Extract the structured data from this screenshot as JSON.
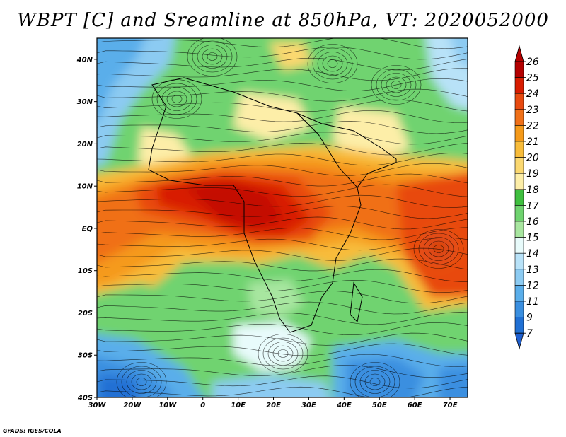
{
  "title": "WBPT [C] and Sreamline at 850hPa, VT: 2020052000",
  "credit": "GrADS: IGES/COLA",
  "map": {
    "lon_range": [
      -30,
      75
    ],
    "lat_range": [
      -40,
      45
    ],
    "lon_ticks": [
      {
        "value": -30,
        "label": "30W"
      },
      {
        "value": -20,
        "label": "20W"
      },
      {
        "value": -10,
        "label": "10W"
      },
      {
        "value": 0,
        "label": "0"
      },
      {
        "value": 10,
        "label": "10E"
      },
      {
        "value": 20,
        "label": "20E"
      },
      {
        "value": 30,
        "label": "30E"
      },
      {
        "value": 40,
        "label": "40E"
      },
      {
        "value": 50,
        "label": "50E"
      },
      {
        "value": 60,
        "label": "60E"
      },
      {
        "value": 70,
        "label": "70E"
      }
    ],
    "lat_ticks": [
      {
        "value": 40,
        "label": "40N"
      },
      {
        "value": 30,
        "label": "30N"
      },
      {
        "value": 20,
        "label": "20N"
      },
      {
        "value": 10,
        "label": "10N"
      },
      {
        "value": 0,
        "label": "EQ"
      },
      {
        "value": -10,
        "label": "10S"
      },
      {
        "value": -20,
        "label": "20S"
      },
      {
        "value": -30,
        "label": "30S"
      },
      {
        "value": -40,
        "label": "40S"
      }
    ]
  },
  "colorbar": {
    "labels": [
      "26",
      "25",
      "24",
      "23",
      "22",
      "21",
      "20",
      "19",
      "18",
      "17",
      "16",
      "15",
      "14",
      "13",
      "12",
      "11",
      "9",
      "7"
    ],
    "colors_top_to_bottom": [
      "#b40000",
      "#d81c00",
      "#e84a10",
      "#f07018",
      "#f59a1a",
      "#f8bc3a",
      "#fbd870",
      "#fdeea8",
      "#3fbf3f",
      "#6fd36f",
      "#a8e6a0",
      "#e8fbfb",
      "#b8e2f8",
      "#8ccbf2",
      "#5aaeea",
      "#3a8fe0",
      "#2070d4"
    ],
    "arrow_top_color": "#b40000",
    "arrow_bottom_color": "#1e5fd0"
  }
}
